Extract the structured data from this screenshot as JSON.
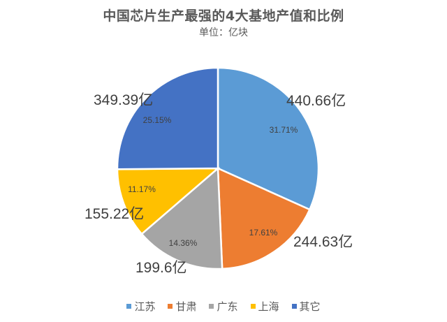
{
  "chart_data": {
    "type": "pie",
    "title": "中国芯片生产最强的4大基地产值和比例",
    "subtitle": "单位：亿块",
    "categories": [
      "江苏",
      "甘肃",
      "广东",
      "上海",
      "其它"
    ],
    "values": [
      440.66,
      244.63,
      199.6,
      155.22,
      349.39
    ],
    "value_labels": [
      "440.66亿",
      "244.63亿",
      "199.6亿",
      "155.22亿",
      "349.39亿"
    ],
    "percentages": [
      "31.71%",
      "17.61%",
      "14.36%",
      "11.17%",
      "25.15%"
    ],
    "colors": [
      "#5B9BD5",
      "#ED7D31",
      "#A5A5A5",
      "#FFC000",
      "#4472C4"
    ],
    "legend_position": "bottom",
    "start_angle": "12 o'clock, clockwise"
  },
  "legend": [
    {
      "label": "江苏",
      "color": "#5B9BD5"
    },
    {
      "label": "甘肃",
      "color": "#ED7D31"
    },
    {
      "label": "广东",
      "color": "#A5A5A5"
    },
    {
      "label": "上海",
      "color": "#FFC000"
    },
    {
      "label": "其它",
      "color": "#4472C4"
    }
  ]
}
